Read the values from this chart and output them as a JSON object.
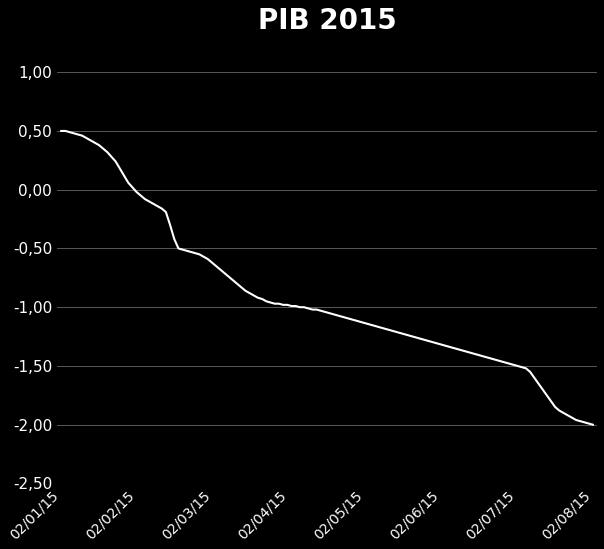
{
  "title": "PIB 2015",
  "title_fontsize": 20,
  "title_fontweight": "bold",
  "background_color": "#000000",
  "text_color": "#ffffff",
  "line_color": "#ffffff",
  "line_width": 1.5,
  "ylim": [
    -2.5,
    1.25
  ],
  "yticks": [
    1.0,
    0.5,
    0.0,
    -0.5,
    -1.0,
    -1.5,
    -2.0,
    -2.5
  ],
  "ytick_labels": [
    "1,00",
    "0,50",
    "0,00",
    "-0,50",
    "-1,00",
    "-1,50",
    "-2,00",
    "-2,50"
  ],
  "xtick_labels": [
    "02/01/15",
    "02/02/15",
    "02/03/15",
    "02/04/15",
    "02/05/15",
    "02/06/15",
    "02/07/15",
    "02/08/15"
  ],
  "grid_color": "#ffffff",
  "grid_alpha": 0.4,
  "grid_linewidth": 0.6,
  "data_points": [
    [
      0,
      0.5
    ],
    [
      1,
      0.5
    ],
    [
      2,
      0.49
    ],
    [
      3,
      0.48
    ],
    [
      4,
      0.47
    ],
    [
      5,
      0.46
    ],
    [
      6,
      0.44
    ],
    [
      7,
      0.42
    ],
    [
      8,
      0.4
    ],
    [
      9,
      0.38
    ],
    [
      10,
      0.35
    ],
    [
      11,
      0.32
    ],
    [
      12,
      0.28
    ],
    [
      13,
      0.24
    ],
    [
      14,
      0.18
    ],
    [
      15,
      0.12
    ],
    [
      16,
      0.06
    ],
    [
      17,
      0.02
    ],
    [
      18,
      -0.02
    ],
    [
      19,
      -0.05
    ],
    [
      20,
      -0.08
    ],
    [
      21,
      -0.1
    ],
    [
      22,
      -0.12
    ],
    [
      23,
      -0.14
    ],
    [
      24,
      -0.16
    ],
    [
      25,
      -0.19
    ],
    [
      26,
      -0.3
    ],
    [
      27,
      -0.42
    ],
    [
      28,
      -0.5
    ],
    [
      29,
      -0.51
    ],
    [
      30,
      -0.52
    ],
    [
      31,
      -0.53
    ],
    [
      32,
      -0.54
    ],
    [
      33,
      -0.55
    ],
    [
      34,
      -0.57
    ],
    [
      35,
      -0.59
    ],
    [
      36,
      -0.62
    ],
    [
      37,
      -0.65
    ],
    [
      38,
      -0.68
    ],
    [
      39,
      -0.71
    ],
    [
      40,
      -0.74
    ],
    [
      41,
      -0.77
    ],
    [
      42,
      -0.8
    ],
    [
      43,
      -0.83
    ],
    [
      44,
      -0.86
    ],
    [
      45,
      -0.88
    ],
    [
      46,
      -0.9
    ],
    [
      47,
      -0.92
    ],
    [
      48,
      -0.93
    ],
    [
      49,
      -0.95
    ],
    [
      50,
      -0.96
    ],
    [
      51,
      -0.97
    ],
    [
      52,
      -0.97
    ],
    [
      53,
      -0.98
    ],
    [
      54,
      -0.98
    ],
    [
      55,
      -0.99
    ],
    [
      56,
      -0.99
    ],
    [
      57,
      -1.0
    ],
    [
      58,
      -1.0
    ],
    [
      59,
      -1.01
    ],
    [
      60,
      -1.02
    ],
    [
      61,
      -1.02
    ],
    [
      62,
      -1.03
    ],
    [
      63,
      -1.04
    ],
    [
      64,
      -1.05
    ],
    [
      65,
      -1.06
    ],
    [
      66,
      -1.07
    ],
    [
      67,
      -1.08
    ],
    [
      68,
      -1.09
    ],
    [
      69,
      -1.1
    ],
    [
      70,
      -1.11
    ],
    [
      71,
      -1.12
    ],
    [
      72,
      -1.13
    ],
    [
      73,
      -1.14
    ],
    [
      74,
      -1.15
    ],
    [
      75,
      -1.16
    ],
    [
      76,
      -1.17
    ],
    [
      77,
      -1.18
    ],
    [
      78,
      -1.19
    ],
    [
      79,
      -1.2
    ],
    [
      80,
      -1.21
    ],
    [
      81,
      -1.22
    ],
    [
      82,
      -1.23
    ],
    [
      83,
      -1.24
    ],
    [
      84,
      -1.25
    ],
    [
      85,
      -1.26
    ],
    [
      86,
      -1.27
    ],
    [
      87,
      -1.28
    ],
    [
      88,
      -1.29
    ],
    [
      89,
      -1.3
    ],
    [
      90,
      -1.31
    ],
    [
      91,
      -1.32
    ],
    [
      92,
      -1.33
    ],
    [
      93,
      -1.34
    ],
    [
      94,
      -1.35
    ],
    [
      95,
      -1.36
    ],
    [
      96,
      -1.37
    ],
    [
      97,
      -1.38
    ],
    [
      98,
      -1.39
    ],
    [
      99,
      -1.4
    ],
    [
      100,
      -1.41
    ],
    [
      101,
      -1.42
    ],
    [
      102,
      -1.43
    ],
    [
      103,
      -1.44
    ],
    [
      104,
      -1.45
    ],
    [
      105,
      -1.46
    ],
    [
      106,
      -1.47
    ],
    [
      107,
      -1.48
    ],
    [
      108,
      -1.49
    ],
    [
      109,
      -1.5
    ],
    [
      110,
      -1.51
    ],
    [
      111,
      -1.52
    ],
    [
      112,
      -1.55
    ],
    [
      113,
      -1.6
    ],
    [
      114,
      -1.65
    ],
    [
      115,
      -1.7
    ],
    [
      116,
      -1.75
    ],
    [
      117,
      -1.8
    ],
    [
      118,
      -1.85
    ],
    [
      119,
      -1.88
    ],
    [
      120,
      -1.9
    ],
    [
      121,
      -1.92
    ],
    [
      122,
      -1.94
    ],
    [
      123,
      -1.96
    ],
    [
      124,
      -1.97
    ],
    [
      125,
      -1.98
    ],
    [
      126,
      -1.99
    ],
    [
      127,
      -2.0
    ]
  ]
}
